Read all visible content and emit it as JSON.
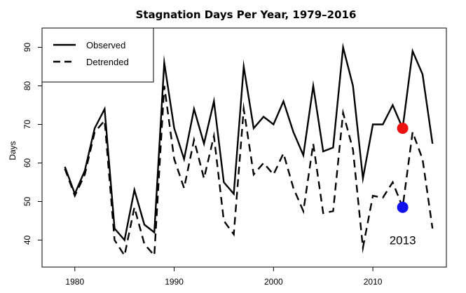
{
  "chart_data": {
    "type": "line",
    "title": "Stagnation Days Per Year, 1979–2016",
    "xlabel": "",
    "ylabel": "Days",
    "xlim": [
      1976.7,
      2017.4
    ],
    "ylim": [
      33,
      95
    ],
    "x_ticks": [
      1980,
      1990,
      2000,
      2010
    ],
    "y_ticks": [
      40,
      50,
      60,
      70,
      80,
      90
    ],
    "x": [
      1979,
      1980,
      1981,
      1982,
      1983,
      1984,
      1985,
      1986,
      1987,
      1988,
      1989,
      1990,
      1991,
      1992,
      1993,
      1994,
      1995,
      1996,
      1997,
      1998,
      1999,
      2000,
      2001,
      2002,
      2003,
      2004,
      2005,
      2006,
      2007,
      2008,
      2009,
      2010,
      2011,
      2012,
      2013,
      2014,
      2015,
      2016
    ],
    "series": [
      {
        "name": "Observed",
        "style": "solid",
        "values": [
          59,
          52,
          58,
          69,
          74,
          43,
          40,
          53,
          44,
          42,
          86,
          69,
          61,
          74,
          65,
          76,
          55,
          52,
          85,
          69,
          72,
          70,
          76,
          68,
          62,
          80,
          63,
          64,
          90,
          80,
          56,
          70,
          70,
          75,
          69,
          89,
          83,
          65
        ]
      },
      {
        "name": "Detrended",
        "style": "dashed",
        "values": [
          58.5,
          51.5,
          57,
          68,
          71,
          40,
          36,
          48.5,
          39,
          36,
          80,
          61,
          53.5,
          66,
          56,
          67,
          45,
          41.5,
          74,
          57,
          60,
          57,
          62.5,
          53.5,
          47.5,
          65,
          47,
          47.5,
          73,
          63.5,
          38,
          51.5,
          51,
          55,
          48.5,
          68,
          61,
          43
        ]
      }
    ],
    "highlights": [
      {
        "x": 2013,
        "y": 69,
        "color": "#ee1111"
      },
      {
        "x": 2013,
        "y": 48.5,
        "color": "#1111ee"
      }
    ],
    "annotation": {
      "text": "2013",
      "x": 2013,
      "y": 40
    },
    "legend": {
      "position": "top-left"
    },
    "grid": false
  }
}
